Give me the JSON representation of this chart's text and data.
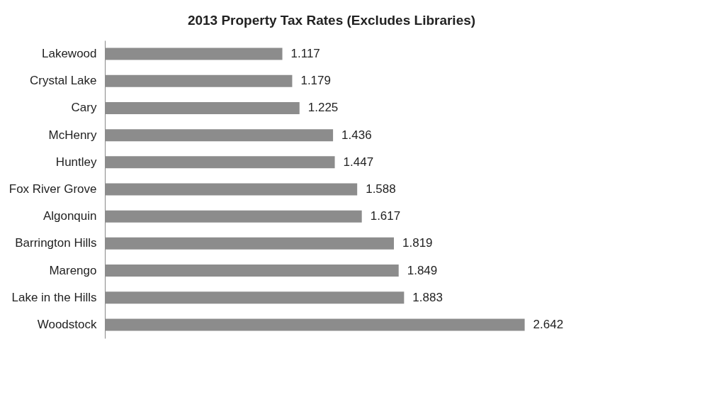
{
  "chart_data": {
    "type": "bar",
    "orientation": "horizontal",
    "title": "2013 Property Tax Rates (Excludes Libraries)",
    "categories": [
      "Lakewood",
      "Crystal Lake",
      "Cary",
      "McHenry",
      "Huntley",
      "Fox River Grove",
      "Algonquin",
      "Barrington Hills",
      "Marengo",
      "Lake in the Hills",
      "Woodstock"
    ],
    "values": [
      1.117,
      1.179,
      1.225,
      1.436,
      1.447,
      1.588,
      1.617,
      1.819,
      1.849,
      1.883,
      2.642
    ],
    "color": "#8c8c8c",
    "data_labels": true
  }
}
